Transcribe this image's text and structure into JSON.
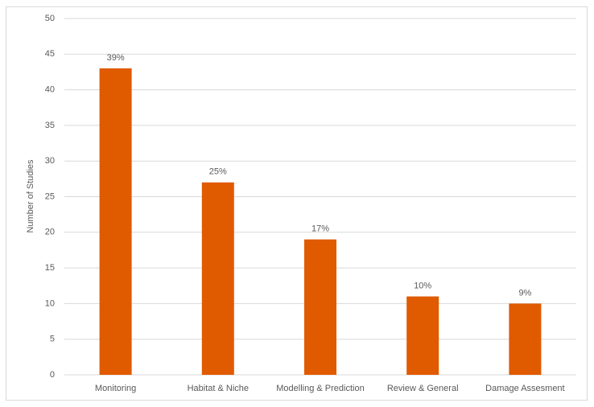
{
  "chart_data": {
    "type": "bar",
    "y_label": "Number of Studies",
    "categories": [
      "Monitoring",
      "Habitat & Niche",
      "Modelling & Prediction",
      "Review & General",
      "Damage Assesment"
    ],
    "values": [
      43,
      27,
      19,
      11,
      10
    ],
    "annotations": [
      "39%",
      "25%",
      "17%",
      "10%",
      "9%"
    ],
    "color": "#e05a00",
    "ylim": [
      0,
      50
    ],
    "yticks": [
      0,
      5,
      10,
      15,
      20,
      25,
      30,
      35,
      40,
      45,
      50
    ],
    "grid": true
  }
}
